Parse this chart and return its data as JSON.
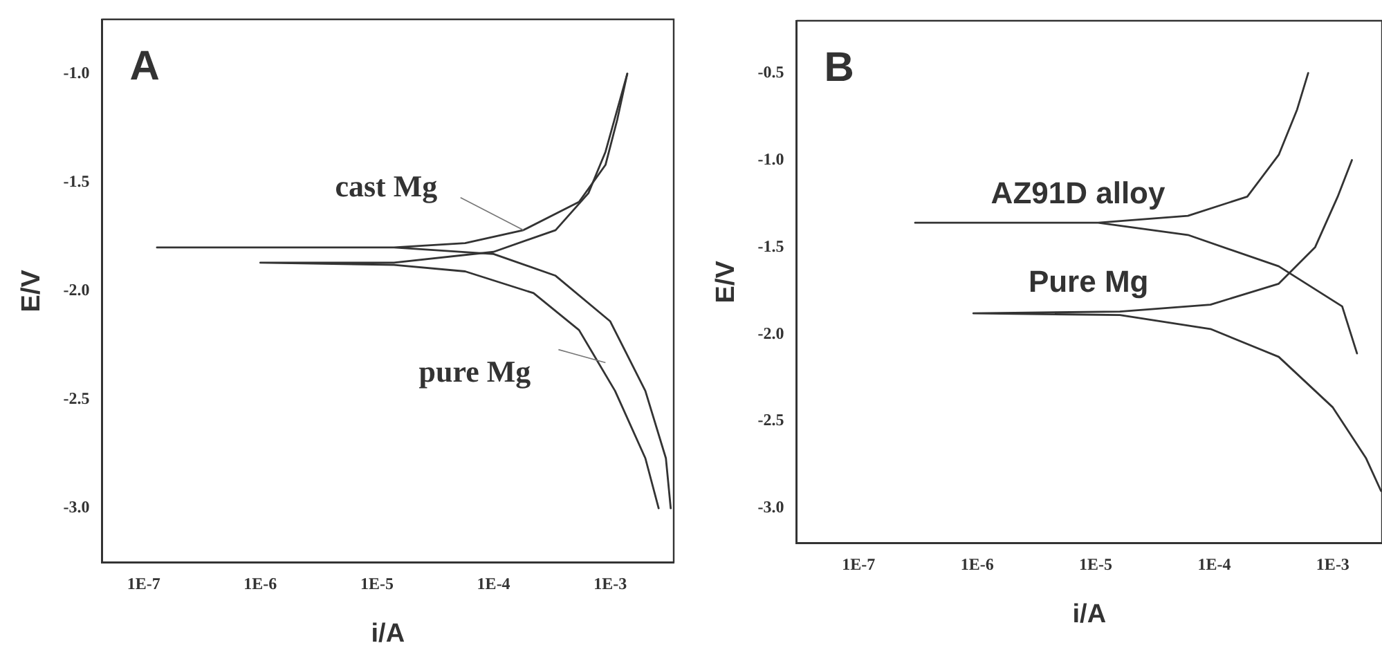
{
  "chart_data": [
    {
      "type": "line",
      "xlabel": "i/A",
      "ylabel": "E/V",
      "annotations": [
        "A"
      ],
      "log": "x",
      "grid": false,
      "legend": false,
      "marker": "none",
      "line_style": "solid",
      "xlim": [
        4.4e-08,
        0.0035
      ],
      "xticks": [
        {
          "value": 1e-07,
          "label": "1E-7"
        },
        {
          "value": 1e-06,
          "label": "1E-6"
        },
        {
          "value": 1e-05,
          "label": "1E-5"
        },
        {
          "value": 0.0001,
          "label": "1E-4"
        },
        {
          "value": 0.001,
          "label": "1E-3"
        }
      ],
      "ylim": [
        -3.25,
        -0.75
      ],
      "yticks": [
        {
          "value": -1,
          "label": "-1.0"
        },
        {
          "value": -1.5,
          "label": "-1.5"
        },
        {
          "value": -2,
          "label": "-2.0"
        },
        {
          "value": -2.5,
          "label": "-2.5"
        },
        {
          "value": -3,
          "label": "-3.0"
        }
      ],
      "series": [
        {
          "name": "cast Mg",
          "color": "#333333",
          "x": [
            0.0033,
            0.003,
            0.002,
            0.001,
            0.00034,
            0.0001,
            1.4e-05,
            1.3e-07,
            1.4e-05,
            5.7e-05,
            0.00018,
            0.00054,
            0.00091,
            0.00115,
            0.0014
          ],
          "values": [
            -3.0,
            -2.77,
            -2.46,
            -2.14,
            -1.93,
            -1.83,
            -1.8,
            -1.8,
            -1.8,
            -1.78,
            -1.72,
            -1.59,
            -1.42,
            -1.21,
            -1.0
          ]
        },
        {
          "name": "pure Mg",
          "color": "#333333",
          "x": [
            0.0026,
            0.002,
            0.0011,
            0.00054,
            0.00022,
            5.7e-05,
            1.4e-05,
            1e-06,
            1.4e-05,
            0.0001,
            0.00034,
            0.00065,
            0.00091,
            0.0014
          ],
          "values": [
            -3.0,
            -2.77,
            -2.46,
            -2.18,
            -2.01,
            -1.91,
            -1.88,
            -1.87,
            -1.87,
            -1.82,
            -1.72,
            -1.55,
            -1.36,
            -1.0
          ]
        }
      ]
    },
    {
      "type": "line",
      "xlabel": "i/A",
      "ylabel": "E/V",
      "annotations": [
        "B"
      ],
      "log": "x",
      "grid": false,
      "legend": false,
      "marker": "none",
      "line_style": "solid",
      "xlim": [
        3e-08,
        0.0026
      ],
      "xticks": [
        {
          "value": 1e-07,
          "label": "1E-7"
        },
        {
          "value": 1e-06,
          "label": "1E-6"
        },
        {
          "value": 1e-05,
          "label": "1E-5"
        },
        {
          "value": 0.0001,
          "label": "1E-4"
        },
        {
          "value": 0.001,
          "label": "1E-3"
        }
      ],
      "ylim": [
        -3.2,
        -0.2
      ],
      "yticks": [
        {
          "value": -0.5,
          "label": "-0.5"
        },
        {
          "value": -1,
          "label": "-1.0"
        },
        {
          "value": -1.5,
          "label": "-1.5"
        },
        {
          "value": -2,
          "label": "-2.0"
        },
        {
          "value": -2.5,
          "label": "-2.5"
        },
        {
          "value": -3,
          "label": "-3.0"
        }
      ],
      "series": [
        {
          "name": "AZ91D alloy",
          "color": "#333333",
          "x": [
            0.0016,
            0.0012,
            0.00035,
            6e-05,
            1.05e-05,
            3e-07,
            1.05e-05,
            6e-05,
            0.00019,
            0.00035,
            0.0005,
            0.00062
          ],
          "values": [
            -2.11,
            -1.84,
            -1.61,
            -1.43,
            -1.36,
            -1.36,
            -1.36,
            -1.32,
            -1.21,
            -0.97,
            -0.71,
            -0.5
          ]
        },
        {
          "name": "Pure Mg",
          "color": "#333333",
          "x": [
            0.00255,
            0.0019,
            0.001,
            0.00035,
            9.3e-05,
            1.6e-05,
            9.3e-07,
            1.6e-05,
            9.3e-05,
            0.00035,
            0.00071,
            0.0011,
            0.00145
          ],
          "values": [
            -2.9,
            -2.71,
            -2.42,
            -2.13,
            -1.97,
            -1.89,
            -1.88,
            -1.87,
            -1.83,
            -1.71,
            -1.5,
            -1.21,
            -1.0
          ]
        }
      ]
    }
  ]
}
